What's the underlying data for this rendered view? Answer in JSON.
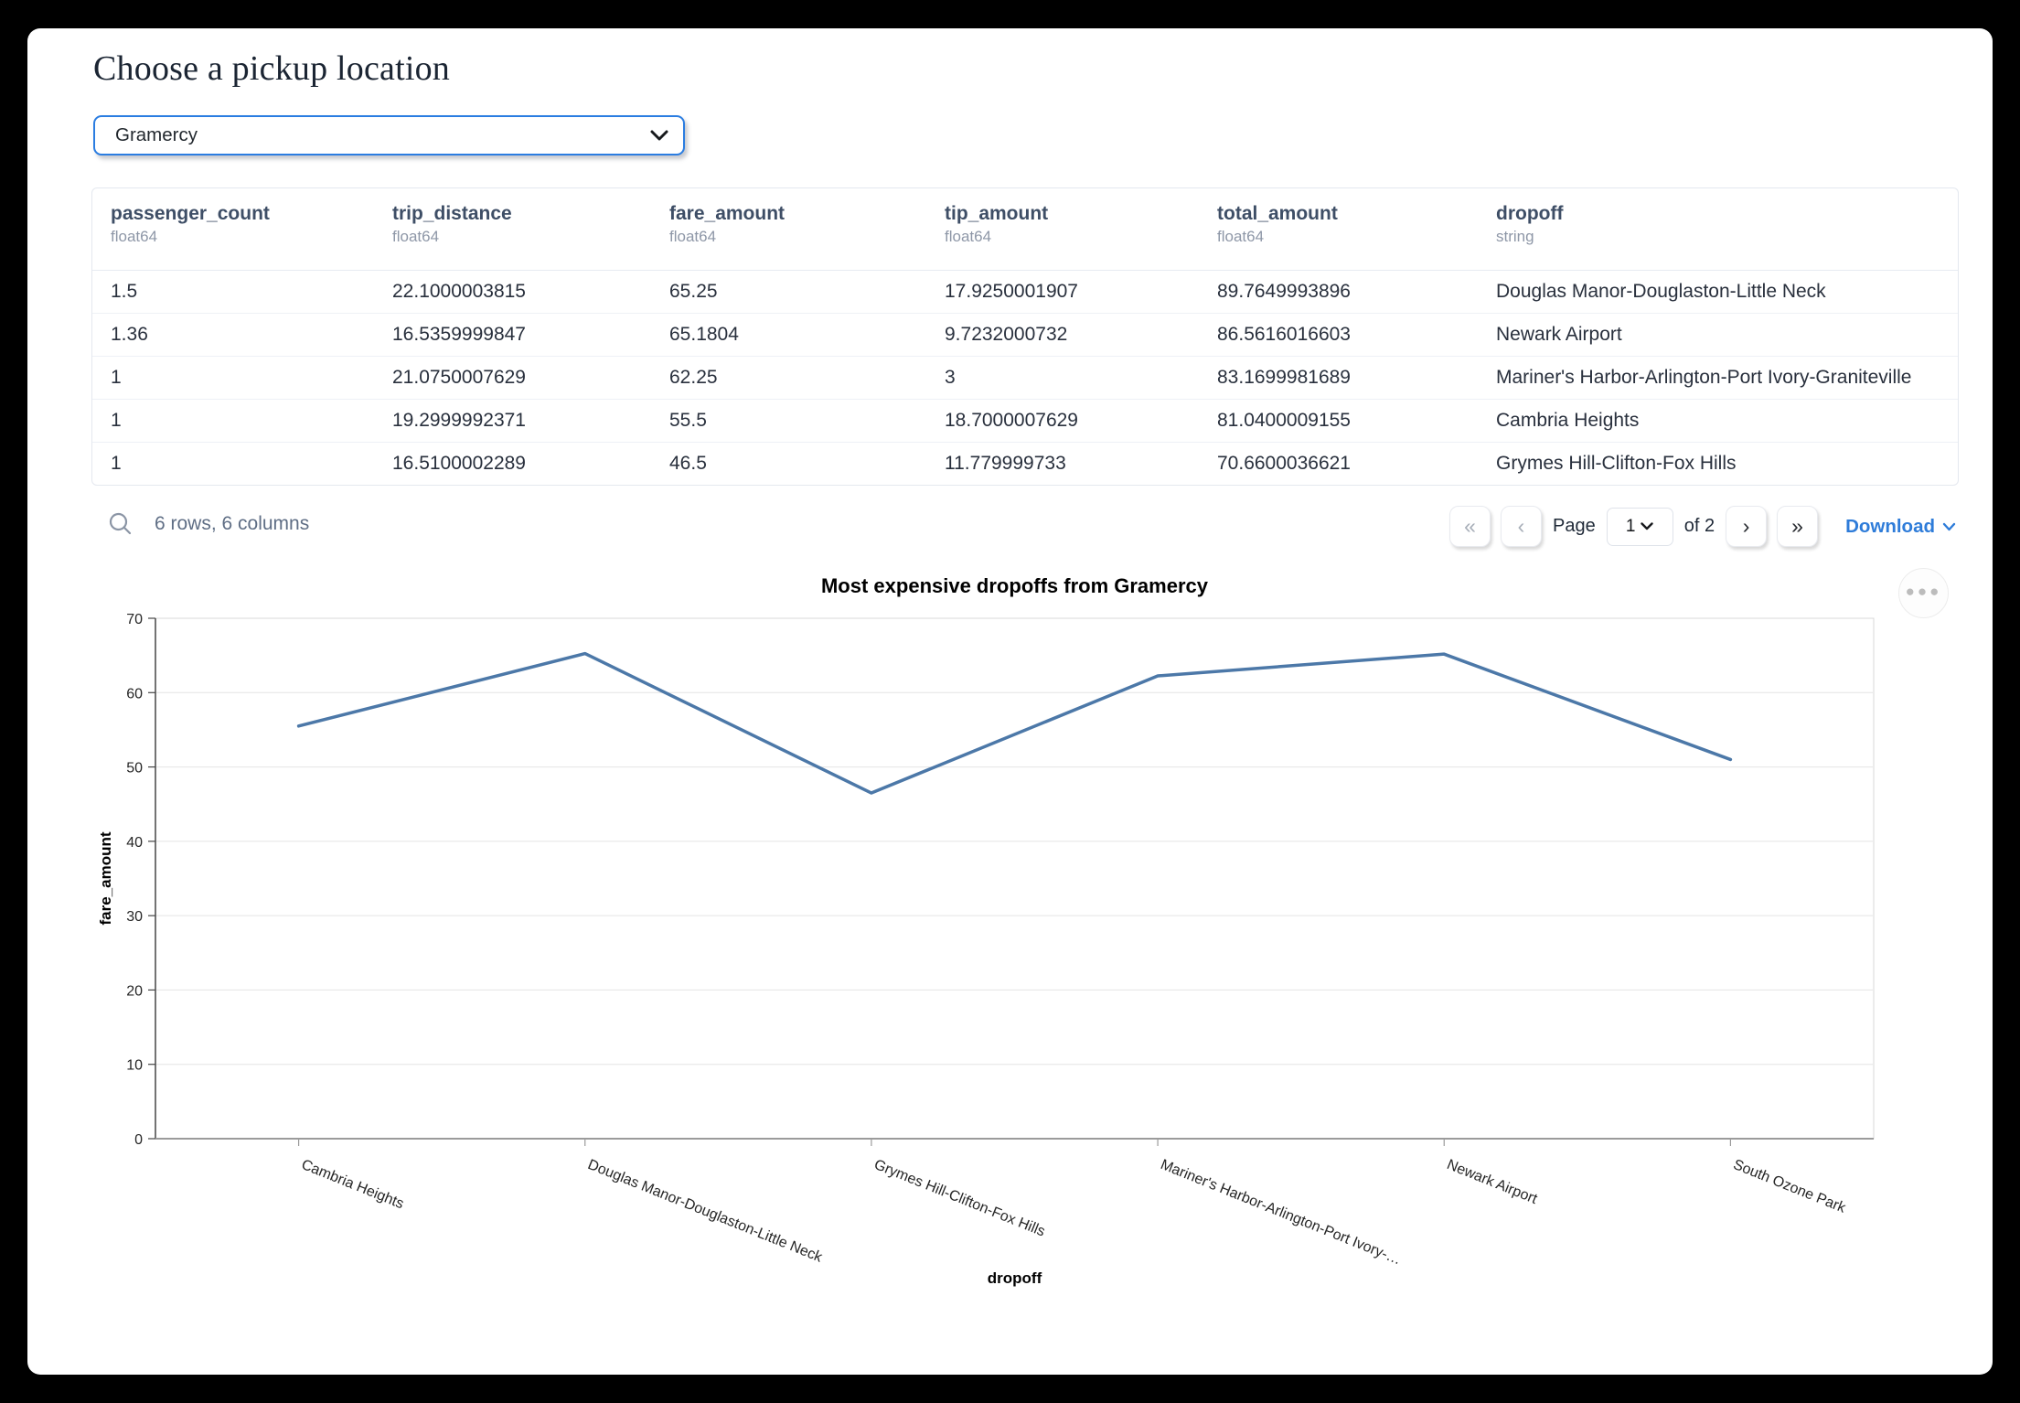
{
  "page": {
    "title": "Choose a pickup location"
  },
  "pickup_select": {
    "value": "Gramercy"
  },
  "table": {
    "columns": [
      {
        "name": "passenger_count",
        "type": "float64"
      },
      {
        "name": "trip_distance",
        "type": "float64"
      },
      {
        "name": "fare_amount",
        "type": "float64"
      },
      {
        "name": "tip_amount",
        "type": "float64"
      },
      {
        "name": "total_amount",
        "type": "float64"
      },
      {
        "name": "dropoff",
        "type": "string"
      }
    ],
    "rows": [
      [
        "1.5",
        "22.1000003815",
        "65.25",
        "17.9250001907",
        "89.7649993896",
        "Douglas Manor-Douglaston-Little Neck"
      ],
      [
        "1.36",
        "16.5359999847",
        "65.1804",
        "9.7232000732",
        "86.5616016603",
        "Newark Airport"
      ],
      [
        "1",
        "21.0750007629",
        "62.25",
        "3",
        "83.1699981689",
        "Mariner's Harbor-Arlington-Port Ivory-Graniteville"
      ],
      [
        "1",
        "19.2999992371",
        "55.5",
        "18.7000007629",
        "81.0400009155",
        "Cambria Heights"
      ],
      [
        "1",
        "16.5100002289",
        "46.5",
        "11.779999733",
        "70.6600036621",
        "Grymes Hill-Clifton-Fox Hills"
      ]
    ],
    "summary": "6 rows, 6 columns",
    "pagination": {
      "page_label": "Page",
      "current_page": "1",
      "total_label": "of 2",
      "download_label": "Download"
    }
  },
  "chart_data": {
    "type": "line",
    "title": "Most expensive dropoffs from Gramercy",
    "xlabel": "dropoff",
    "ylabel": "fare_amount",
    "categories": [
      "Cambria Heights",
      "Douglas Manor-Douglaston-Little Neck",
      "Grymes Hill-Clifton-Fox Hills",
      "Mariner's Harbor-Arlington-Port Ivory-…",
      "Newark Airport",
      "South Ozone Park"
    ],
    "values": [
      55.5,
      65.25,
      46.5,
      62.25,
      65.1804,
      51
    ],
    "ylim": [
      0,
      70
    ],
    "yticks": [
      0,
      10,
      20,
      30,
      40,
      50,
      60,
      70
    ],
    "grid": "horizontal",
    "legend": "none",
    "line_color": "#4c78a8"
  },
  "colors": {
    "accent_blue": "#2b7de1",
    "link_blue": "#2e7cd9",
    "line_blue": "#4c78a8"
  }
}
